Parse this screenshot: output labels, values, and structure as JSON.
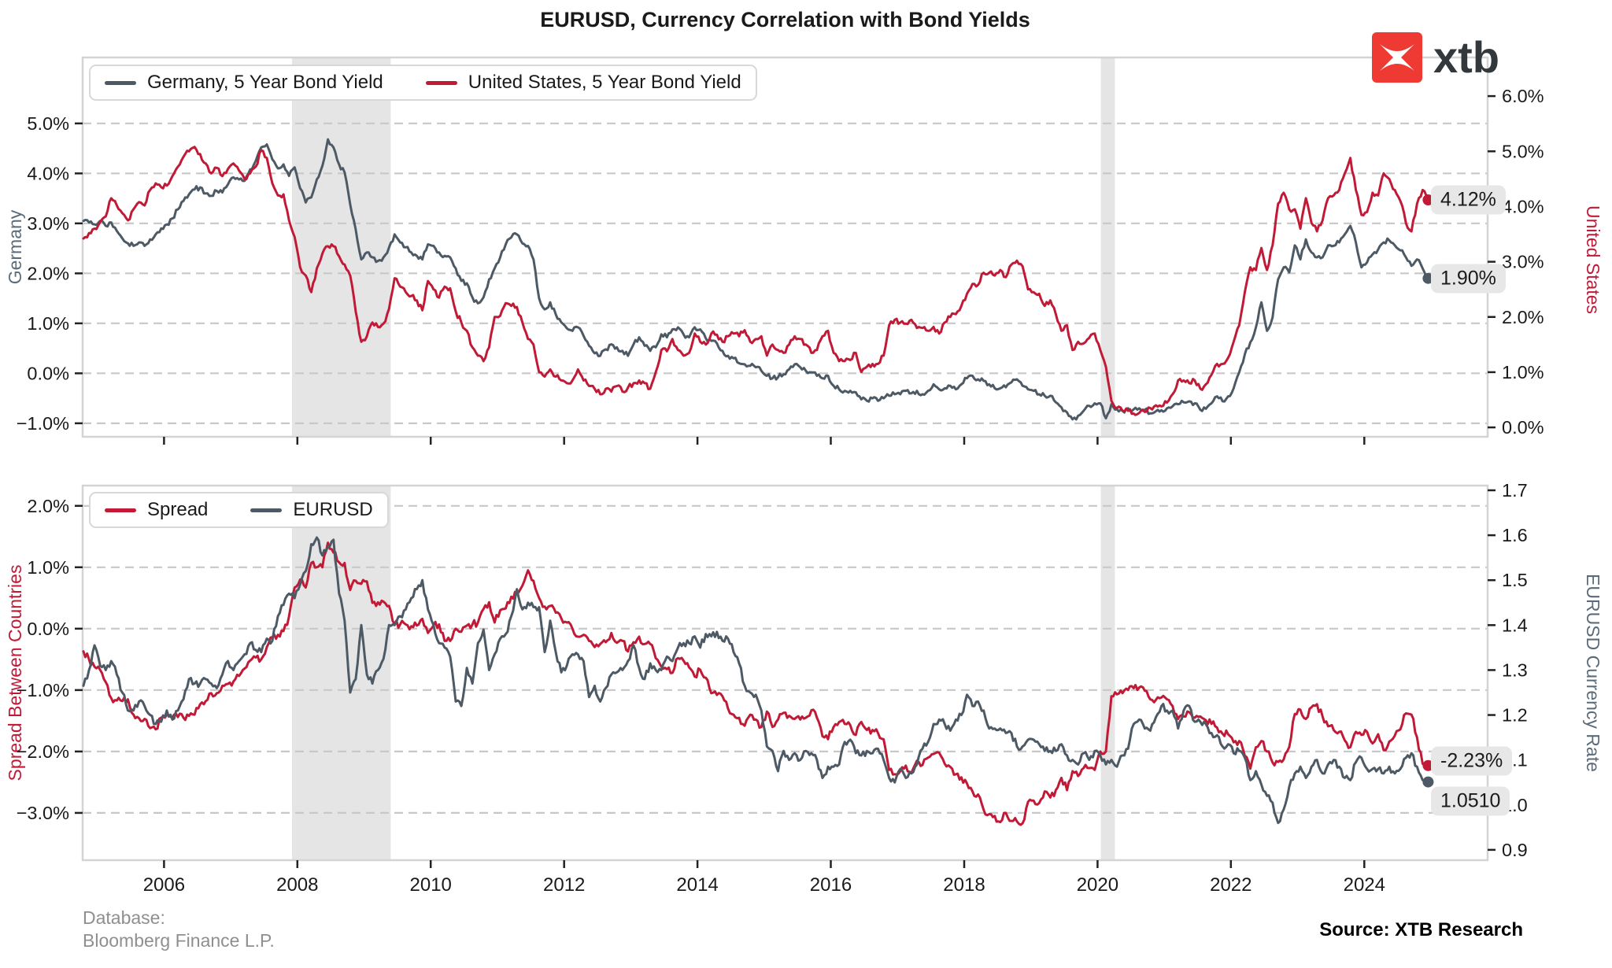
{
  "title": "EURUSD, Currency Correlation with Bond Yields",
  "logo": {
    "text": "xtb",
    "square_color": "#ee3a33"
  },
  "footer": {
    "database_line1": "Database:",
    "database_line2": "Bloomberg Finance L.P.",
    "source": "Source: XTB Research"
  },
  "chart_data": {
    "type": "line",
    "style": {
      "band_color": "#e5e5e5",
      "grid_color": "#c8c8c8",
      "spine_color": "#d4d4d4",
      "annotation_bg": "#e7e7e7"
    },
    "x_axis": {
      "vmin": 2004.78,
      "vmax": 2025.85,
      "ticks": [
        2006,
        2008,
        2010,
        2012,
        2014,
        2016,
        2018,
        2020,
        2022,
        2024
      ],
      "tick_labels": [
        "2006",
        "2008",
        "2010",
        "2012",
        "2014",
        "2016",
        "2018",
        "2020",
        "2022",
        "2024"
      ]
    },
    "shaded_regions": [
      {
        "name": "recession-2008",
        "from": 2007.92,
        "to": 2009.4
      },
      {
        "name": "recession-2020",
        "from": 2020.05,
        "to": 2020.26
      }
    ],
    "panels": [
      {
        "name": "bond-yields",
        "left_axis": {
          "title": "Germany",
          "color": "#5b6b79",
          "vmin": -1.27,
          "vmax": 6.32,
          "ticks": [
            5,
            4,
            3,
            2,
            1,
            0,
            -1
          ],
          "tick_labels": [
            "5.0%",
            "4.0%",
            "3.0%",
            "2.0%",
            "1.0%",
            "0.0%",
            "−1.0%"
          ]
        },
        "right_axis": {
          "title": "United States",
          "color": "#c11a37",
          "vmin": -0.17,
          "vmax": 6.7,
          "ticks": [
            6,
            5,
            4,
            3,
            2,
            1,
            0
          ],
          "tick_labels": [
            "6.0%",
            "5.0%",
            "4.0%",
            "3.0%",
            "2.0%",
            "1.0%",
            "0.0%"
          ]
        },
        "series": [
          {
            "name": "Germany, 5 Year Bond Yield",
            "key": "germany_5y",
            "axis": "left",
            "color": "#4d5a65",
            "jitter": 0.05
          },
          {
            "name": "United States, 5 Year Bond Yield",
            "key": "us_5y",
            "axis": "right",
            "color": "#c11a37",
            "jitter": 0.05
          }
        ]
      },
      {
        "name": "spread-eurusd",
        "left_axis": {
          "title": "Spread Between Countries",
          "color": "#c11a37",
          "vmin": -3.77,
          "vmax": 2.33,
          "ticks": [
            2,
            1,
            0,
            -1,
            -2,
            -3
          ],
          "tick_labels": [
            "2.0%",
            "1.0%",
            "0.0%",
            "−1.0%",
            "−2.0%",
            "−3.0%"
          ]
        },
        "right_axis": {
          "title": "EURUSD Currency Rate",
          "color": "#5b6b79",
          "vmin": 0.877,
          "vmax": 1.7105,
          "ticks": [
            1.7,
            1.6,
            1.5,
            1.4,
            1.3,
            1.2,
            1.1,
            1.0,
            0.9
          ],
          "tick_labels": [
            "1.7",
            "1.6",
            "1.5",
            "1.4",
            "1.3",
            "1.2",
            "1.1",
            "1.0",
            "0.9"
          ]
        },
        "series": [
          {
            "name": "Spread",
            "key": "spread",
            "axis": "left",
            "color": "#c11a37",
            "jitter": 0.06
          },
          {
            "name": "EURUSD",
            "key": "eurusd",
            "axis": "right",
            "color": "#4d5a65",
            "jitter": 0.008
          }
        ]
      }
    ],
    "annotations": [
      {
        "panel": 0,
        "axis": "right",
        "value": 4.12,
        "label": "4.12%",
        "dy": 0
      },
      {
        "panel": 0,
        "axis": "left",
        "value": 1.9,
        "label": "1.90%",
        "dy": 0
      },
      {
        "panel": 1,
        "axis": "left",
        "value": -2.23,
        "label": "-2.23%",
        "dy": -6
      },
      {
        "panel": 1,
        "axis": "right",
        "value": 1.051,
        "label": "1.0510",
        "dy": 24
      }
    ],
    "series_values": {
      "start_year": 2004.792,
      "step": 0.08333,
      "germany_5y": [
        3.05,
        3.02,
        2.98,
        3.05,
        2.95,
        3.02,
        2.85,
        2.7,
        2.6,
        2.55,
        2.62,
        2.55,
        2.68,
        2.78,
        2.9,
        2.98,
        3.1,
        3.28,
        3.45,
        3.58,
        3.68,
        3.72,
        3.6,
        3.55,
        3.65,
        3.62,
        3.78,
        3.92,
        3.88,
        3.85,
        4.08,
        4.25,
        4.52,
        4.58,
        4.28,
        4.1,
        4.18,
        3.95,
        4.12,
        3.7,
        3.42,
        3.52,
        3.88,
        4.15,
        4.68,
        4.52,
        4.18,
        4.02,
        3.38,
        2.88,
        2.28,
        2.42,
        2.32,
        2.25,
        2.32,
        2.52,
        2.78,
        2.62,
        2.52,
        2.42,
        2.35,
        2.28,
        2.58,
        2.55,
        2.42,
        2.35,
        2.32,
        2.1,
        1.85,
        1.8,
        1.52,
        1.4,
        1.52,
        1.88,
        2.1,
        2.32,
        2.58,
        2.72,
        2.78,
        2.6,
        2.55,
        2.28,
        1.5,
        1.28,
        1.42,
        1.18,
        1.02,
        0.9,
        0.85,
        0.92,
        0.75,
        0.55,
        0.4,
        0.35,
        0.48,
        0.58,
        0.52,
        0.45,
        0.35,
        0.58,
        0.72,
        0.55,
        0.45,
        0.52,
        0.78,
        0.72,
        0.88,
        0.92,
        0.78,
        0.72,
        0.92,
        0.88,
        0.7,
        0.65,
        0.6,
        0.45,
        0.35,
        0.3,
        0.2,
        0.18,
        0.15,
        0.12,
        0.05,
        -0.05,
        -0.1,
        -0.08,
        -0.02,
        0.08,
        0.18,
        0.12,
        0.05,
        0.02,
        -0.05,
        -0.1,
        -0.05,
        -0.25,
        -0.32,
        -0.35,
        -0.35,
        -0.38,
        -0.52,
        -0.55,
        -0.5,
        -0.55,
        -0.5,
        -0.45,
        -0.42,
        -0.42,
        -0.35,
        -0.4,
        -0.35,
        -0.42,
        -0.35,
        -0.22,
        -0.32,
        -0.3,
        -0.25,
        -0.32,
        -0.22,
        -0.1,
        -0.05,
        -0.12,
        -0.15,
        -0.22,
        -0.3,
        -0.3,
        -0.28,
        -0.18,
        -0.12,
        -0.25,
        -0.32,
        -0.35,
        -0.42,
        -0.45,
        -0.45,
        -0.58,
        -0.68,
        -0.78,
        -0.92,
        -0.85,
        -0.75,
        -0.65,
        -0.6,
        -0.6,
        -0.9,
        -0.62,
        -0.72,
        -0.75,
        -0.7,
        -0.72,
        -0.7,
        -0.73,
        -0.8,
        -0.76,
        -0.74,
        -0.7,
        -0.66,
        -0.62,
        -0.58,
        -0.56,
        -0.6,
        -0.73,
        -0.71,
        -0.6,
        -0.46,
        -0.56,
        -0.46,
        -0.3,
        0.02,
        0.38,
        0.62,
        0.92,
        1.42,
        0.85,
        1.12,
        1.88,
        2.12,
        2.02,
        2.56,
        2.28,
        2.68,
        2.42,
        2.32,
        2.32,
        2.56,
        2.55,
        2.62,
        2.78,
        2.95,
        2.62,
        2.12,
        2.22,
        2.38,
        2.48,
        2.62,
        2.66,
        2.56,
        2.46,
        2.32,
        2.15,
        2.28,
        2.1,
        1.9
      ],
      "us_5y": [
        3.42,
        3.52,
        3.6,
        3.72,
        3.82,
        4.15,
        4.02,
        3.88,
        3.75,
        3.95,
        4.08,
        4.02,
        4.3,
        4.42,
        4.35,
        4.38,
        4.55,
        4.72,
        4.9,
        5.0,
        5.08,
        4.95,
        4.78,
        4.6,
        4.7,
        4.55,
        4.68,
        4.78,
        4.65,
        4.5,
        4.6,
        4.72,
        5.02,
        4.88,
        4.42,
        4.2,
        4.22,
        3.75,
        3.45,
        2.9,
        2.75,
        2.45,
        2.88,
        3.15,
        3.28,
        3.28,
        3.1,
        2.95,
        2.75,
        2.1,
        1.55,
        1.65,
        1.9,
        1.82,
        1.88,
        2.15,
        2.7,
        2.55,
        2.45,
        2.38,
        2.3,
        2.12,
        2.65,
        2.5,
        2.35,
        2.55,
        2.52,
        2.1,
        1.9,
        1.75,
        1.45,
        1.3,
        1.2,
        1.45,
        2.0,
        2.02,
        2.25,
        2.2,
        2.18,
        1.9,
        1.6,
        1.5,
        1.0,
        0.92,
        1.05,
        0.92,
        0.85,
        0.8,
        0.85,
        1.05,
        0.85,
        0.75,
        0.7,
        0.6,
        0.7,
        0.65,
        0.75,
        0.65,
        0.72,
        0.8,
        0.85,
        0.8,
        0.7,
        1.0,
        1.4,
        1.38,
        1.6,
        1.4,
        1.3,
        1.35,
        1.7,
        1.55,
        1.5,
        1.7,
        1.68,
        1.55,
        1.65,
        1.7,
        1.65,
        1.76,
        1.55,
        1.6,
        1.65,
        1.3,
        1.5,
        1.4,
        1.35,
        1.5,
        1.65,
        1.6,
        1.5,
        1.35,
        1.4,
        1.65,
        1.75,
        1.35,
        1.2,
        1.2,
        1.22,
        1.35,
        1.0,
        1.1,
        1.15,
        1.15,
        1.3,
        1.85,
        1.95,
        1.9,
        1.88,
        1.95,
        1.8,
        1.8,
        1.75,
        1.82,
        1.7,
        1.9,
        2.0,
        2.05,
        2.2,
        2.42,
        2.6,
        2.58,
        2.8,
        2.8,
        2.75,
        2.85,
        2.72,
        2.95,
        3.02,
        2.92,
        2.5,
        2.45,
        2.42,
        2.2,
        2.3,
        2.05,
        1.75,
        1.85,
        1.4,
        1.55,
        1.52,
        1.62,
        1.7,
        1.4,
        1.1,
        0.48,
        0.35,
        0.3,
        0.3,
        0.25,
        0.26,
        0.28,
        0.35,
        0.4,
        0.38,
        0.45,
        0.6,
        0.85,
        0.85,
        0.8,
        0.85,
        0.7,
        0.78,
        0.95,
        1.15,
        1.15,
        1.26,
        1.55,
        1.85,
        2.45,
        2.9,
        2.85,
        3.25,
        2.85,
        3.3,
        4.05,
        4.25,
        3.95,
        3.95,
        3.6,
        4.15,
        3.7,
        3.55,
        3.75,
        4.15,
        4.2,
        4.3,
        4.6,
        4.88,
        4.3,
        3.85,
        3.9,
        4.25,
        4.2,
        4.6,
        4.5,
        4.3,
        4.1,
        3.7,
        3.55,
        4.05,
        4.3,
        4.12
      ],
      "spread": [
        -0.37,
        -0.5,
        -0.62,
        -0.67,
        -0.87,
        -1.13,
        -1.17,
        -1.18,
        -1.15,
        -1.4,
        -1.46,
        -1.47,
        -1.62,
        -1.64,
        -1.45,
        -1.4,
        -1.45,
        -1.44,
        -1.45,
        -1.42,
        -1.4,
        -1.23,
        -1.18,
        -1.05,
        -1.05,
        -0.93,
        -0.9,
        -0.86,
        -0.77,
        -0.65,
        -0.52,
        -0.47,
        -0.5,
        -0.3,
        -0.14,
        -0.1,
        -0.04,
        0.2,
        0.67,
        0.8,
        0.67,
        1.07,
        1.0,
        1.0,
        1.4,
        1.24,
        1.08,
        1.07,
        0.63,
        0.78,
        0.73,
        0.77,
        0.42,
        0.43,
        0.44,
        0.37,
        0.08,
        0.07,
        0.07,
        0.04,
        0.05,
        0.16,
        -0.07,
        0.05,
        0.07,
        -0.2,
        -0.2,
        0.0,
        -0.05,
        0.05,
        0.07,
        0.1,
        0.32,
        0.43,
        0.1,
        0.3,
        0.33,
        0.52,
        0.6,
        0.7,
        0.95,
        0.78,
        0.5,
        0.36,
        0.37,
        0.26,
        0.17,
        0.1,
        0.0,
        -0.13,
        -0.1,
        -0.2,
        -0.3,
        -0.25,
        -0.22,
        -0.07,
        -0.23,
        -0.2,
        -0.37,
        -0.22,
        -0.13,
        -0.25,
        -0.25,
        -0.48,
        -0.62,
        -0.66,
        -0.72,
        -0.48,
        -0.52,
        -0.63,
        -0.78,
        -0.67,
        -0.8,
        -1.05,
        -1.08,
        -1.1,
        -1.3,
        -1.4,
        -1.45,
        -1.58,
        -1.4,
        -1.48,
        -1.6,
        -1.35,
        -1.6,
        -1.48,
        -1.37,
        -1.42,
        -1.47,
        -1.48,
        -1.45,
        -1.33,
        -1.45,
        -1.75,
        -1.8,
        -1.6,
        -1.52,
        -1.55,
        -1.57,
        -1.73,
        -1.52,
        -1.65,
        -1.65,
        -1.7,
        -1.8,
        -2.3,
        -2.37,
        -2.32,
        -2.23,
        -2.35,
        -2.15,
        -2.22,
        -2.1,
        -2.04,
        -2.02,
        -2.2,
        -2.25,
        -2.37,
        -2.42,
        -2.52,
        -2.65,
        -2.7,
        -2.95,
        -3.02,
        -3.05,
        -3.15,
        -3.0,
        -3.13,
        -3.14,
        -3.17,
        -2.82,
        -2.8,
        -2.84,
        -2.65,
        -2.75,
        -2.63,
        -2.43,
        -2.63,
        -2.32,
        -2.4,
        -2.27,
        -2.27,
        -2.3,
        -2.0,
        -2.0,
        -1.1,
        -1.07,
        -1.05,
        -1.0,
        -0.97,
        -0.96,
        -1.01,
        -1.15,
        -1.16,
        -1.12,
        -1.15,
        -1.26,
        -1.47,
        -1.43,
        -1.36,
        -1.45,
        -1.43,
        -1.49,
        -1.55,
        -1.61,
        -1.71,
        -1.72,
        -1.85,
        -1.83,
        -2.07,
        -2.28,
        -1.93,
        -1.83,
        -2.0,
        -2.18,
        -2.17,
        -2.13,
        -1.93,
        -1.39,
        -1.32,
        -1.47,
        -1.28,
        -1.23,
        -1.43,
        -1.59,
        -1.65,
        -1.68,
        -1.82,
        -1.93,
        -1.68,
        -1.73,
        -1.68,
        -1.87,
        -1.72,
        -1.98,
        -1.84,
        -1.74,
        -1.64,
        -1.38,
        -1.4,
        -1.77,
        -2.2,
        -2.23
      ],
      "eurusd": [
        1.265,
        1.3,
        1.355,
        1.31,
        1.3,
        1.32,
        1.29,
        1.25,
        1.21,
        1.21,
        1.23,
        1.22,
        1.2,
        1.18,
        1.185,
        1.21,
        1.19,
        1.21,
        1.235,
        1.28,
        1.27,
        1.27,
        1.28,
        1.27,
        1.26,
        1.29,
        1.32,
        1.3,
        1.32,
        1.335,
        1.36,
        1.345,
        1.34,
        1.37,
        1.365,
        1.42,
        1.445,
        1.47,
        1.46,
        1.49,
        1.52,
        1.58,
        1.595,
        1.555,
        1.575,
        1.59,
        1.47,
        1.41,
        1.25,
        1.28,
        1.4,
        1.29,
        1.27,
        1.3,
        1.325,
        1.4,
        1.4,
        1.42,
        1.435,
        1.46,
        1.48,
        1.5,
        1.435,
        1.4,
        1.36,
        1.35,
        1.33,
        1.23,
        1.22,
        1.305,
        1.27,
        1.36,
        1.39,
        1.3,
        1.335,
        1.37,
        1.38,
        1.42,
        1.48,
        1.435,
        1.45,
        1.44,
        1.44,
        1.34,
        1.41,
        1.34,
        1.295,
        1.31,
        1.335,
        1.335,
        1.32,
        1.24,
        1.265,
        1.23,
        1.26,
        1.29,
        1.295,
        1.3,
        1.32,
        1.355,
        1.305,
        1.28,
        1.315,
        1.3,
        1.3,
        1.33,
        1.32,
        1.35,
        1.36,
        1.36,
        1.375,
        1.35,
        1.38,
        1.375,
        1.385,
        1.365,
        1.37,
        1.34,
        1.315,
        1.265,
        1.25,
        1.245,
        1.21,
        1.13,
        1.12,
        1.075,
        1.12,
        1.1,
        1.115,
        1.1,
        1.12,
        1.115,
        1.1,
        1.06,
        1.085,
        1.085,
        1.09,
        1.14,
        1.145,
        1.115,
        1.11,
        1.12,
        1.115,
        1.125,
        1.1,
        1.06,
        1.05,
        1.08,
        1.06,
        1.07,
        1.09,
        1.125,
        1.14,
        1.18,
        1.19,
        1.18,
        1.165,
        1.19,
        1.2,
        1.245,
        1.22,
        1.23,
        1.21,
        1.17,
        1.17,
        1.17,
        1.16,
        1.16,
        1.13,
        1.13,
        1.145,
        1.145,
        1.135,
        1.12,
        1.12,
        1.12,
        1.135,
        1.11,
        1.1,
        1.09,
        1.115,
        1.1,
        1.12,
        1.11,
        1.09,
        1.1,
        1.085,
        1.11,
        1.125,
        1.18,
        1.19,
        1.17,
        1.165,
        1.195,
        1.22,
        1.21,
        1.21,
        1.17,
        1.21,
        1.22,
        1.185,
        1.185,
        1.18,
        1.16,
        1.155,
        1.13,
        1.135,
        1.115,
        1.12,
        1.105,
        1.055,
        1.075,
        1.045,
        1.02,
        1.005,
        0.96,
        0.99,
        1.04,
        1.07,
        1.085,
        1.06,
        1.085,
        1.1,
        1.07,
        1.09,
        1.1,
        1.085,
        1.06,
        1.055,
        1.095,
        1.105,
        1.08,
        1.08,
        1.08,
        1.07,
        1.085,
        1.07,
        1.08,
        1.105,
        1.115,
        1.085,
        1.055,
        1.051
      ]
    }
  }
}
